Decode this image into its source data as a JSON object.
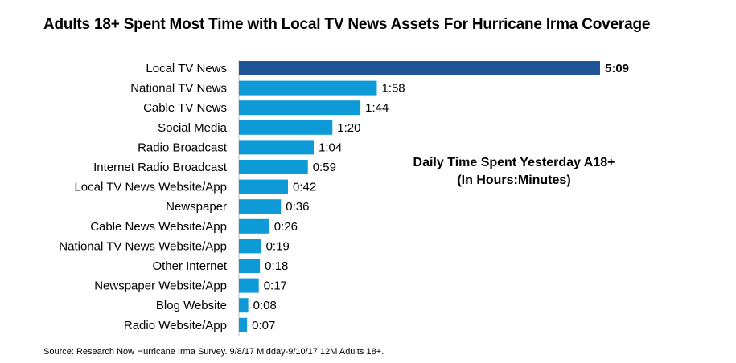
{
  "title": "Adults 18+ Spent Most Time with Local TV News Assets For Hurricane Irma Coverage",
  "annotation": {
    "line1": "Daily Time Spent Yesterday A18+",
    "line2": "(In Hours:Minutes)"
  },
  "source": "Source: Research Now Hurricane Irma Survey. 9/8/17 Midday-9/10/17 12M Adults 18+.",
  "colors": {
    "highlight": "#1f5597",
    "bar": "#0e9ad7"
  },
  "chart_data": {
    "type": "bar",
    "orientation": "horizontal",
    "unit": "minutes",
    "categories": [
      "Local TV News",
      "National TV News",
      "Cable TV News",
      "Social Media",
      "Radio Broadcast",
      "Internet Radio Broadcast",
      "Local TV News Website/App",
      "Newspaper",
      "Cable News Website/App",
      "National TV News Website/App",
      "Other Internet",
      "Newspaper Website/App",
      "Blog Website",
      "Radio Website/App"
    ],
    "values": [
      309,
      118,
      104,
      80,
      64,
      59,
      42,
      36,
      26,
      19,
      18,
      17,
      8,
      7
    ],
    "labels": [
      "5:09",
      "1:58",
      "1:44",
      "1:20",
      "1:04",
      "0:59",
      "0:42",
      "0:36",
      "0:26",
      "0:19",
      "0:18",
      "0:17",
      "0:08",
      "0:07"
    ],
    "highlight_index": 0,
    "xlim": [
      0,
      309
    ],
    "grid": false,
    "legend": "none"
  }
}
